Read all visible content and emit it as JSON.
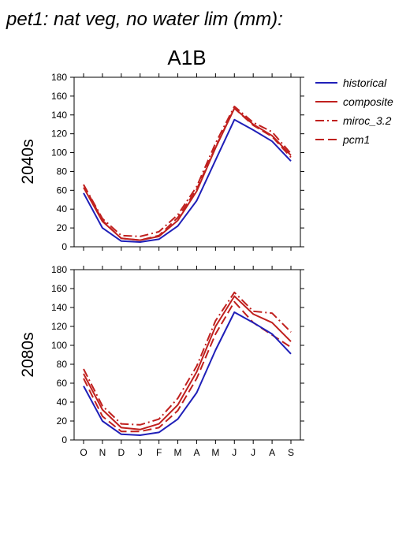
{
  "page_title": "pet1: nat veg, no water lim (mm):",
  "scenario": "A1B",
  "colors": {
    "historical": "#1f1fb8",
    "projection": "#c0201e",
    "axis": "#000000"
  },
  "legend": [
    {
      "label": "historical",
      "style": "solid",
      "color": "#1f1fb8"
    },
    {
      "label": "composite",
      "style": "solid",
      "color": "#c0201e"
    },
    {
      "label": "miroc_3.2",
      "style": "dashdot",
      "color": "#c0201e"
    },
    {
      "label": "pcm1",
      "style": "dashed",
      "color": "#c0201e"
    }
  ],
  "chart_data": [
    {
      "type": "line",
      "panel_label": "2040s",
      "categories": [
        "O",
        "N",
        "D",
        "J",
        "F",
        "M",
        "A",
        "M",
        "J",
        "J",
        "A",
        "S"
      ],
      "ylim": [
        0,
        180
      ],
      "yticks": [
        0,
        20,
        40,
        60,
        80,
        100,
        120,
        140,
        160,
        180
      ],
      "series": [
        {
          "name": "historical",
          "style": "solid",
          "values": [
            57,
            20,
            6,
            5,
            8,
            22,
            49,
            92,
            135,
            124,
            112,
            91
          ]
        },
        {
          "name": "composite",
          "style": "solid",
          "values": [
            63,
            27,
            9,
            7,
            11,
            28,
            59,
            105,
            147,
            130,
            118,
            97
          ]
        },
        {
          "name": "miroc_3.2",
          "style": "dashdot",
          "values": [
            66,
            30,
            12,
            11,
            16,
            34,
            64,
            110,
            149,
            132,
            122,
            99
          ]
        },
        {
          "name": "pcm1",
          "style": "dashed",
          "values": [
            66,
            28,
            9,
            7,
            12,
            31,
            61,
            106,
            147,
            129,
            117,
            95
          ]
        }
      ]
    },
    {
      "type": "line",
      "panel_label": "2080s",
      "categories": [
        "O",
        "N",
        "D",
        "J",
        "F",
        "M",
        "A",
        "M",
        "J",
        "J",
        "A",
        "S"
      ],
      "ylim": [
        0,
        180
      ],
      "yticks": [
        0,
        20,
        40,
        60,
        80,
        100,
        120,
        140,
        160,
        180
      ],
      "series": [
        {
          "name": "historical",
          "style": "solid",
          "values": [
            57,
            20,
            6,
            5,
            8,
            22,
            50,
            95,
            135,
            124,
            112,
            91
          ]
        },
        {
          "name": "composite",
          "style": "solid",
          "values": [
            70,
            32,
            13,
            11,
            17,
            37,
            72,
            120,
            152,
            133,
            124,
            104
          ]
        },
        {
          "name": "miroc_3.2",
          "style": "dashdot",
          "values": [
            75,
            36,
            17,
            16,
            22,
            44,
            78,
            126,
            156,
            136,
            134,
            114
          ]
        },
        {
          "name": "pcm1",
          "style": "dashed",
          "values": [
            65,
            25,
            9,
            9,
            13,
            31,
            65,
            112,
            146,
            124,
            111,
            98
          ]
        }
      ]
    }
  ]
}
